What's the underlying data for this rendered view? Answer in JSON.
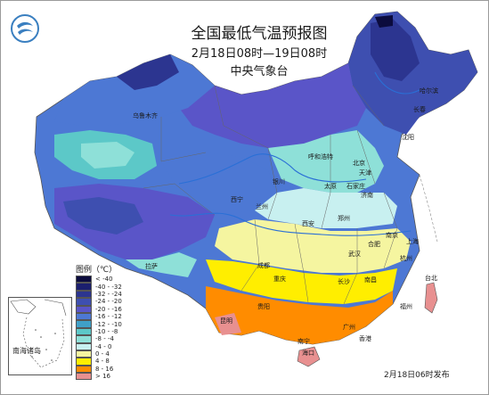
{
  "title": {
    "main": "全国最低气温预报图",
    "period": "2月18日08时—19日08时",
    "org": "中央气象台"
  },
  "legend": {
    "title": "图例（℃）",
    "bins": [
      {
        "label": "< -40",
        "color": "#0b0b3d"
      },
      {
        "label": "-40 - -32",
        "color": "#1b1f6e"
      },
      {
        "label": "-32 - -24",
        "color": "#2c3590"
      },
      {
        "label": "-24 - -20",
        "color": "#3e4fb0"
      },
      {
        "label": "-20 - -16",
        "color": "#5a55c8"
      },
      {
        "label": "-16 - -12",
        "color": "#4d78d4"
      },
      {
        "label": "-12 - -10",
        "color": "#3fa0c8"
      },
      {
        "label": "-10 - -8",
        "color": "#5cc8c8"
      },
      {
        "label": "-8 - -4",
        "color": "#8ee0d8"
      },
      {
        "label": "-4 - 0",
        "color": "#c8f0f0"
      },
      {
        "label": "0 - 4",
        "color": "#f5f5a0"
      },
      {
        "label": "4 - 8",
        "color": "#ffee00"
      },
      {
        "label": "8 - 16",
        "color": "#ff8c00"
      },
      {
        "label": "> 16",
        "color": "#e89090"
      }
    ]
  },
  "inset_label": "南海诸岛",
  "issue_time": "2月18日06时发布",
  "cities": [
    {
      "name": "乌鲁木齐"
    },
    {
      "name": "拉萨"
    },
    {
      "name": "西宁"
    },
    {
      "name": "兰州"
    },
    {
      "name": "银川"
    },
    {
      "name": "呼和浩特"
    },
    {
      "name": "太原"
    },
    {
      "name": "石家庄"
    },
    {
      "name": "北京"
    },
    {
      "name": "天津"
    },
    {
      "name": "济南"
    },
    {
      "name": "沈阳"
    },
    {
      "name": "长春"
    },
    {
      "name": "哈尔滨"
    },
    {
      "name": "西安"
    },
    {
      "name": "郑州"
    },
    {
      "name": "成都"
    },
    {
      "name": "重庆"
    },
    {
      "name": "武汉"
    },
    {
      "name": "合肥"
    },
    {
      "name": "南京"
    },
    {
      "name": "上海"
    },
    {
      "name": "杭州"
    },
    {
      "name": "长沙"
    },
    {
      "name": "南昌"
    },
    {
      "name": "贵阳"
    },
    {
      "name": "昆明"
    },
    {
      "name": "福州"
    },
    {
      "name": "台北"
    },
    {
      "name": "南宁"
    },
    {
      "name": "广州"
    },
    {
      "name": "香港"
    },
    {
      "name": "海口"
    }
  ]
}
